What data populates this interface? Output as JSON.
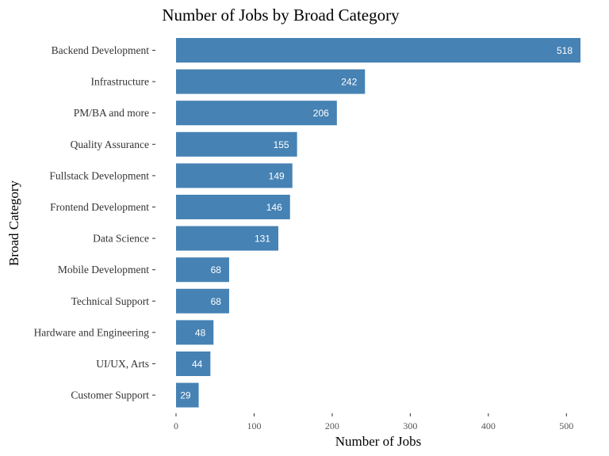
{
  "chart_data": {
    "type": "bar",
    "orientation": "horizontal",
    "title": "Number of Jobs by Broad Category",
    "xlabel": "Number of Jobs",
    "ylabel": "Broad Category",
    "categories": [
      "Backend Development",
      "Infrastructure",
      "PM/BA and more",
      "Quality Assurance",
      "Fullstack Development",
      "Frontend Development",
      "Data Science",
      "Mobile Development",
      "Technical Support",
      "Hardware and Engineering",
      "UI/UX, Arts",
      "Customer Support"
    ],
    "values": [
      518,
      242,
      206,
      155,
      149,
      146,
      131,
      68,
      68,
      48,
      44,
      29
    ],
    "xlim": [
      0,
      520
    ],
    "xticks": [
      0,
      100,
      200,
      300,
      400,
      500
    ],
    "grid": false,
    "legend": "none",
    "bar_color": "#4682B4",
    "data_labels": true
  }
}
